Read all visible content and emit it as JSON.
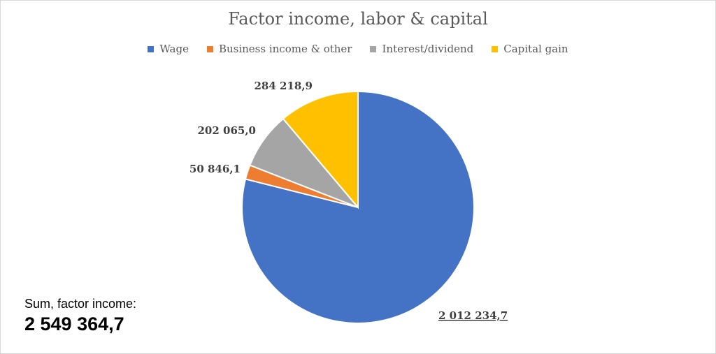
{
  "chart_data": {
    "type": "pie",
    "title": "Factor income, labor & capital",
    "legend_position": "top",
    "categories": [
      "Wage",
      "Business income & other",
      "Interest/dividend",
      "Capital gain"
    ],
    "values": [
      2012234.7,
      50846.1,
      202065.0,
      284218.9
    ],
    "value_labels": [
      "2 012 234,7",
      "50 846,1",
      "202 065,0",
      "284 218,9"
    ],
    "colors": [
      "#4472C4",
      "#ED7D31",
      "#A5A5A5",
      "#FFC000"
    ]
  },
  "annotation": {
    "sum_label": "Sum, factor income:",
    "sum_value": "2 549 364,7"
  }
}
